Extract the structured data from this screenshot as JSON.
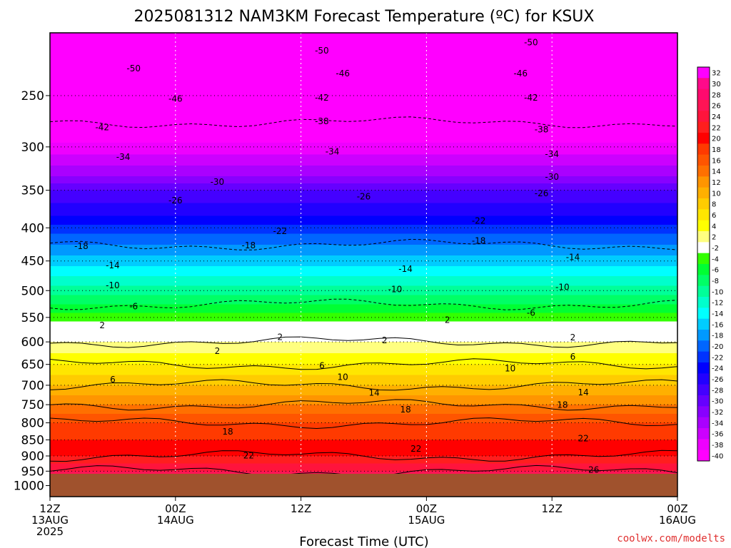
{
  "chart_data": {
    "type": "heatmap",
    "title": "2025081312 NAM3KM Forecast Temperature (ºC) for KSUX",
    "xlabel": "Forecast Time (UTC)",
    "ylabel": "",
    "x_range_hours": [
      0,
      60
    ],
    "x_ticks": [
      {
        "hour": 0,
        "lines": [
          "12Z",
          "13AUG",
          "2025"
        ]
      },
      {
        "hour": 12,
        "lines": [
          "00Z",
          "14AUG"
        ]
      },
      {
        "hour": 24,
        "lines": [
          "12Z"
        ]
      },
      {
        "hour": 36,
        "lines": [
          "00Z",
          "15AUG"
        ]
      },
      {
        "hour": 48,
        "lines": [
          "12Z"
        ]
      },
      {
        "hour": 60,
        "lines": [
          "00Z",
          "16AUG"
        ]
      }
    ],
    "y_axis": {
      "scale": "log",
      "top_hpa": 200,
      "ground_hpa": 975,
      "bottom_hpa": 1040
    },
    "y_ticks": [
      250,
      300,
      350,
      400,
      450,
      500,
      550,
      600,
      650,
      700,
      750,
      800,
      850,
      900,
      950,
      1000
    ],
    "colorbar": {
      "ticks": [
        32,
        30,
        28,
        26,
        24,
        22,
        20,
        18,
        16,
        14,
        12,
        10,
        8,
        6,
        4,
        2,
        -2,
        -4,
        -6,
        -8,
        -10,
        -12,
        -14,
        -16,
        -18,
        -20,
        -22,
        -24,
        -26,
        -28,
        -30,
        -32,
        -34,
        -36,
        -38,
        -40
      ],
      "colors": [
        "#ff00ff",
        "#ff0a8a",
        "#ff0a6e",
        "#ff1455",
        "#ff143c",
        "#ff1e1e",
        "#ff0000",
        "#ff3a00",
        "#ff5500",
        "#ff7000",
        "#ff9500",
        "#ffb000",
        "#ffcc00",
        "#ffe600",
        "#ffff00",
        "#ffff80",
        "#ffffff",
        "#33ff00",
        "#00ff33",
        "#00ff66",
        "#00ff99",
        "#00ffcc",
        "#00ffff",
        "#00ccff",
        "#0099ff",
        "#0066ff",
        "#0033ff",
        "#0000ff",
        "#2200ff",
        "#4400ff",
        "#6600ff",
        "#8800ff",
        "#aa00ff",
        "#cc00ff",
        "#ee00ff",
        "#ff00ff"
      ]
    },
    "profile": [
      {
        "hpa": 200,
        "temp": -56
      },
      {
        "hpa": 225,
        "temp": -52
      },
      {
        "hpa": 250,
        "temp": -47
      },
      {
        "hpa": 275,
        "temp": -42
      },
      {
        "hpa": 300,
        "temp": -37
      },
      {
        "hpa": 325,
        "temp": -33
      },
      {
        "hpa": 350,
        "temp": -28
      },
      {
        "hpa": 375,
        "temp": -25
      },
      {
        "hpa": 400,
        "temp": -21
      },
      {
        "hpa": 425,
        "temp": -18
      },
      {
        "hpa": 450,
        "temp": -15
      },
      {
        "hpa": 475,
        "temp": -12
      },
      {
        "hpa": 500,
        "temp": -9
      },
      {
        "hpa": 525,
        "temp": -6
      },
      {
        "hpa": 550,
        "temp": -3
      },
      {
        "hpa": 575,
        "temp": 0
      },
      {
        "hpa": 600,
        "temp": 2
      },
      {
        "hpa": 625,
        "temp": 4
      },
      {
        "hpa": 650,
        "temp": 6
      },
      {
        "hpa": 675,
        "temp": 8
      },
      {
        "hpa": 700,
        "temp": 10
      },
      {
        "hpa": 725,
        "temp": 12
      },
      {
        "hpa": 750,
        "temp": 14
      },
      {
        "hpa": 775,
        "temp": 16
      },
      {
        "hpa": 800,
        "temp": 18
      },
      {
        "hpa": 850,
        "temp": 20
      },
      {
        "hpa": 900,
        "temp": 22
      },
      {
        "hpa": 950,
        "temp": 26
      },
      {
        "hpa": 975,
        "temp": 28
      }
    ],
    "contour_labels": [
      {
        "text": "-50",
        "hour": 8,
        "hpa": 227
      },
      {
        "text": "-50",
        "hour": 26,
        "hpa": 213
      },
      {
        "text": "-50",
        "hour": 46,
        "hpa": 207
      },
      {
        "text": "-46",
        "hour": 12,
        "hpa": 253
      },
      {
        "text": "-46",
        "hour": 28,
        "hpa": 231
      },
      {
        "hour": 45,
        "hpa": 231,
        "text": "-46"
      },
      {
        "text": "-42",
        "hour": 5,
        "hpa": 280
      },
      {
        "text": "-42",
        "hour": 26,
        "hpa": 252
      },
      {
        "text": "-42",
        "hour": 46,
        "hpa": 252
      },
      {
        "text": "-38",
        "hour": 26,
        "hpa": 274
      },
      {
        "text": "-38",
        "hour": 47,
        "hpa": 282
      },
      {
        "text": "-34",
        "hour": 7,
        "hpa": 311
      },
      {
        "text": "-34",
        "hour": 27,
        "hpa": 305
      },
      {
        "text": "-34",
        "hour": 48,
        "hpa": 308
      },
      {
        "text": "-30",
        "hour": 16,
        "hpa": 340
      },
      {
        "text": "-30",
        "hour": 48,
        "hpa": 334
      },
      {
        "text": "-26",
        "hour": 12,
        "hpa": 363
      },
      {
        "text": "-26",
        "hour": 30,
        "hpa": 358
      },
      {
        "text": "-26",
        "hour": 47,
        "hpa": 354
      },
      {
        "text": "-22",
        "hour": 22,
        "hpa": 405
      },
      {
        "text": "-22",
        "hour": 41,
        "hpa": 390
      },
      {
        "text": "-18",
        "hour": 3,
        "hpa": 427
      },
      {
        "text": "-18",
        "hour": 19,
        "hpa": 426
      },
      {
        "text": "-18",
        "hour": 41,
        "hpa": 419
      },
      {
        "text": "-14",
        "hour": 6,
        "hpa": 457
      },
      {
        "text": "-14",
        "hour": 34,
        "hpa": 463
      },
      {
        "text": "-14",
        "hour": 50,
        "hpa": 444
      },
      {
        "text": "-10",
        "hour": 6,
        "hpa": 491
      },
      {
        "text": "-10",
        "hour": 33,
        "hpa": 498
      },
      {
        "text": "-10",
        "hour": 49,
        "hpa": 494
      },
      {
        "text": "-6",
        "hour": 8,
        "hpa": 529
      },
      {
        "text": "-6",
        "hour": 46,
        "hpa": 541
      },
      {
        "text": "2",
        "hour": 5,
        "hpa": 566
      },
      {
        "text": "2",
        "hour": 22,
        "hpa": 590
      },
      {
        "text": "2",
        "hour": 38,
        "hpa": 555
      },
      {
        "text": "2",
        "hour": 32,
        "hpa": 597
      },
      {
        "text": "2",
        "hour": 50,
        "hpa": 591
      },
      {
        "text": "2",
        "hour": 16,
        "hpa": 620
      },
      {
        "text": "6",
        "hour": 6,
        "hpa": 686
      },
      {
        "text": "6",
        "hour": 26,
        "hpa": 653
      },
      {
        "text": "6",
        "hour": 50,
        "hpa": 633
      },
      {
        "text": "10",
        "hour": 28,
        "hpa": 680
      },
      {
        "text": "10",
        "hour": 44,
        "hpa": 660
      },
      {
        "text": "14",
        "hour": 31,
        "hpa": 719
      },
      {
        "text": "14",
        "hour": 51,
        "hpa": 718
      },
      {
        "text": "18",
        "hour": 34,
        "hpa": 763
      },
      {
        "text": "18",
        "hour": 49,
        "hpa": 751
      },
      {
        "text": "18",
        "hour": 17,
        "hpa": 826
      },
      {
        "text": "22",
        "hour": 19,
        "hpa": 899
      },
      {
        "text": "22",
        "hour": 35,
        "hpa": 877
      },
      {
        "text": "22",
        "hour": 51,
        "hpa": 846
      },
      {
        "text": "26",
        "hour": 52,
        "hpa": 946
      }
    ],
    "credit": "coolwx.com/modelts"
  }
}
